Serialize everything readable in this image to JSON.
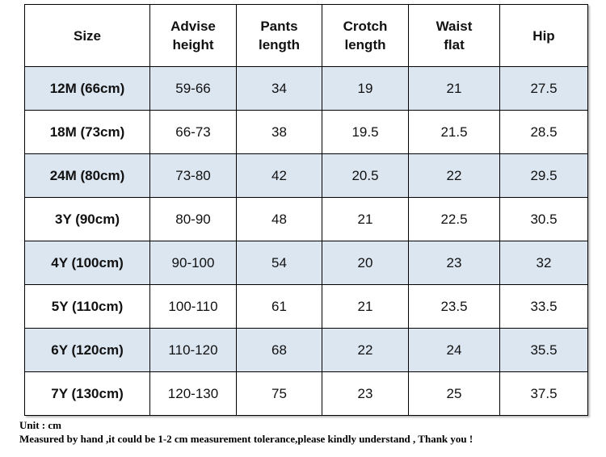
{
  "table": {
    "header": [
      "Size",
      "Advise\nheight",
      "Pants\nlength",
      "Crotch\nlength",
      "Waist\nflat",
      "Hip"
    ],
    "rows": [
      [
        "12M (66cm)",
        "59-66",
        34,
        19,
        21,
        27.5
      ],
      [
        "18M (73cm)",
        "66-73",
        38,
        19.5,
        21.5,
        28.5
      ],
      [
        "24M (80cm)",
        "73-80",
        42,
        20.5,
        22,
        29.5
      ],
      [
        "3Y (90cm)",
        "80-90",
        48,
        21,
        22.5,
        30.5
      ],
      [
        "4Y (100cm)",
        "90-100",
        54,
        20,
        23,
        32
      ],
      [
        "5Y (110cm)",
        "100-110",
        61,
        21,
        23.5,
        33.5
      ],
      [
        "6Y (120cm)",
        "110-120",
        68,
        22,
        24,
        35.5
      ],
      [
        "7Y (130cm)",
        "120-130",
        75,
        23,
        25,
        37.5
      ]
    ]
  },
  "notes": [
    "Unit : cm",
    "Measured by hand ,it could be 1-2 cm measurement tolerance,please kindly understand , Thank you !"
  ]
}
